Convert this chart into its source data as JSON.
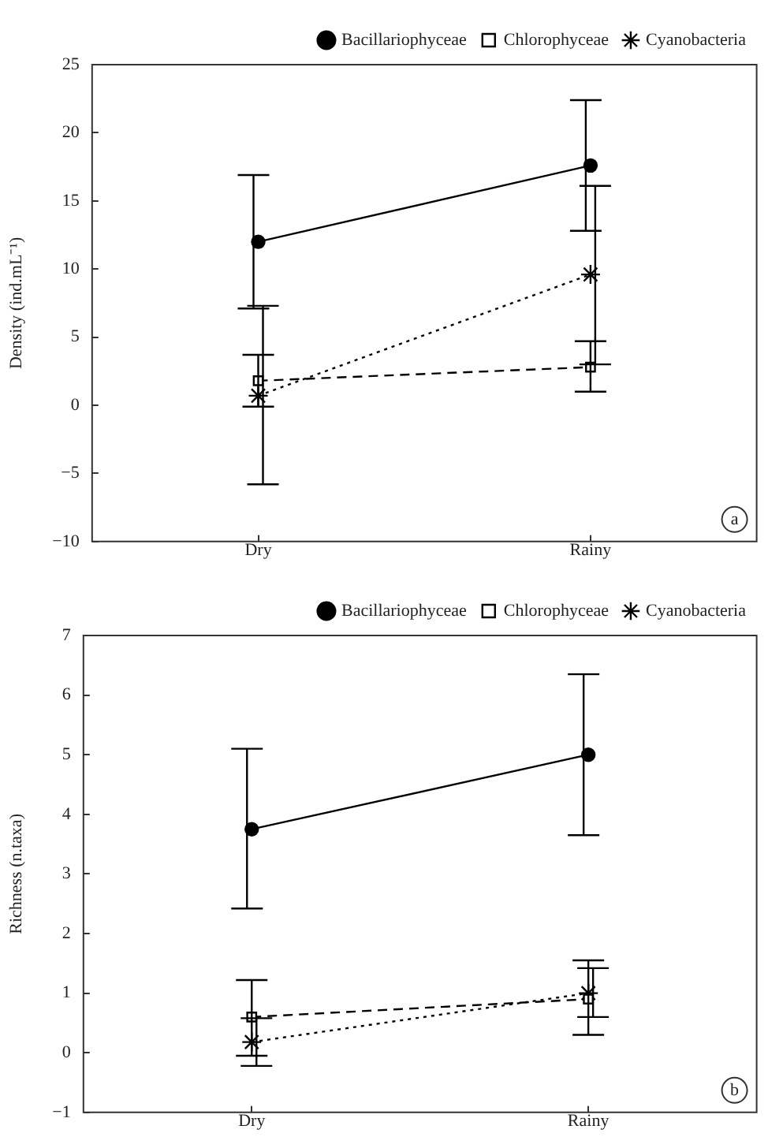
{
  "chart_data": [
    {
      "type": "line",
      "ylabel": "Density (ind.mL⁻¹)",
      "categories": [
        "Dry",
        "Rainy"
      ],
      "ylim": [
        -10,
        25
      ],
      "yticks": [
        {
          "value": -10,
          "label": "−10"
        },
        {
          "value": -5,
          "label": "−5"
        },
        0,
        5,
        10,
        15,
        20,
        25
      ],
      "grid": false,
      "legend": "top right",
      "annotations": [
        "a"
      ],
      "series": [
        {
          "name": "Bacillariophyceae",
          "color": "#000000",
          "marker": "circle",
          "line_style": "solid",
          "values": [
            12,
            17.6
          ],
          "errors": [
            [
              7.1,
              16.9
            ],
            [
              12.8,
              22.4
            ]
          ]
        },
        {
          "name": "Chlorophyceae",
          "color": "#000000",
          "marker": "square",
          "line_style": "dashed",
          "values": [
            1.8,
            2.8
          ],
          "errors": [
            [
              -0.1,
              3.7
            ],
            [
              1.0,
              4.7
            ]
          ]
        },
        {
          "name": "Cyanobacteria",
          "color": "#000000",
          "marker": "cross",
          "line_style": "dotted",
          "values": [
            0.7,
            9.6
          ],
          "errors": [
            [
              -5.8,
              7.3
            ],
            [
              3.0,
              16.1
            ]
          ]
        }
      ]
    },
    {
      "type": "line",
      "ylabel": "Richness (n.taxa)",
      "categories": [
        "Dry",
        "Rainy"
      ],
      "ylim": [
        -1,
        7
      ],
      "yticks": [
        {
          "value": -1,
          "label": "−1"
        },
        0,
        1,
        2,
        3,
        4,
        5,
        6,
        7
      ],
      "grid": false,
      "legend": "top right",
      "annotations": [
        "b"
      ],
      "series": [
        {
          "name": "Bacillariophyceae",
          "color": "#000000",
          "marker": "circle",
          "line_style": "solid",
          "values": [
            3.75,
            5.0
          ],
          "errors": [
            [
              2.42,
              5.1
            ],
            [
              3.65,
              6.35
            ]
          ]
        },
        {
          "name": "Chlorophyceae",
          "color": "#000000",
          "marker": "square",
          "line_style": "dashed",
          "values": [
            0.6,
            0.9
          ],
          "errors": [
            [
              -0.05,
              1.22
            ],
            [
              0.3,
              1.55
            ]
          ]
        },
        {
          "name": "Cyanobacteria",
          "color": "#000000",
          "marker": "cross",
          "line_style": "dotted",
          "values": [
            0.18,
            1.0
          ],
          "errors": [
            [
              -0.22,
              0.58
            ],
            [
              0.6,
              1.42
            ]
          ]
        }
      ]
    }
  ]
}
